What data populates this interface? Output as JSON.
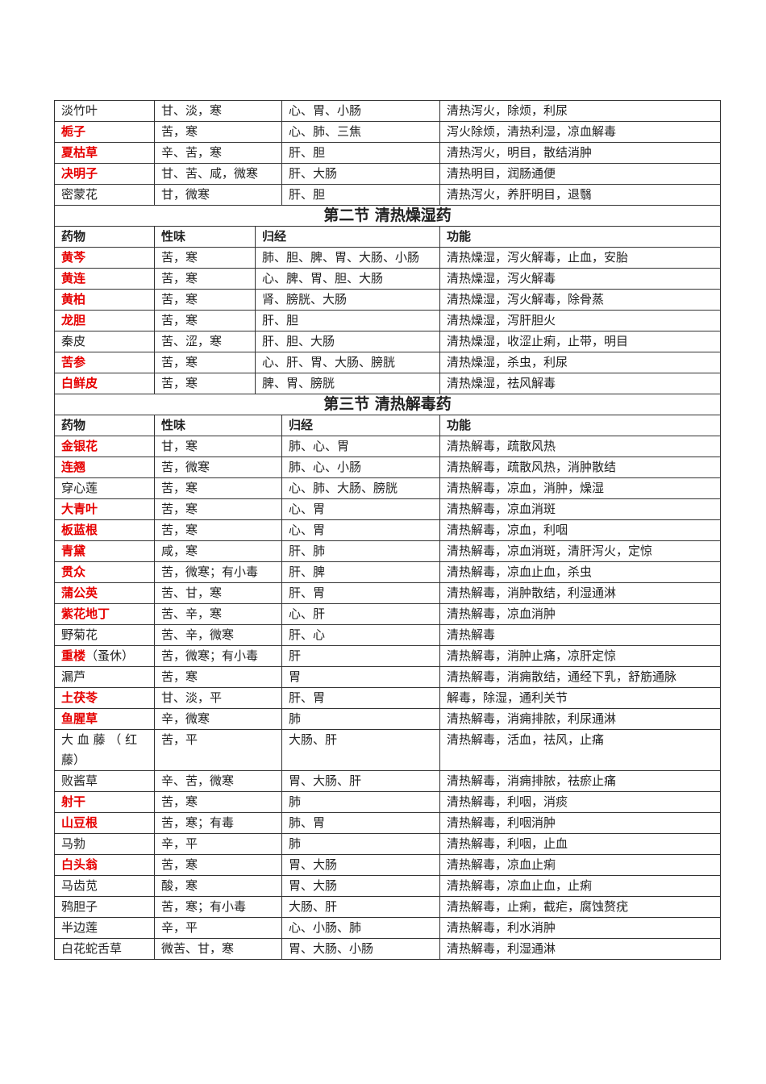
{
  "columns": [
    "药物",
    "性味",
    "归经",
    "功能"
  ],
  "key_color": "#e60000",
  "sections": [
    {
      "title": "",
      "show_header": false,
      "rows": [
        {
          "name": "淡竹叶",
          "key": false,
          "taste": "甘、淡，寒",
          "meridian": "心、胃、小肠",
          "function": "清热泻火，除烦，利尿"
        },
        {
          "name": "栀子",
          "key": true,
          "taste": "苦，寒",
          "meridian": "心、肺、三焦",
          "function": "泻火除烦，清热利湿，凉血解毒"
        },
        {
          "name": "夏枯草",
          "key": true,
          "taste": "辛、苦，寒",
          "meridian": "肝、胆",
          "function": "清热泻火，明目，散结消肿"
        },
        {
          "name": "决明子",
          "key": true,
          "taste": "甘、苦、咸，微寒",
          "meridian": "肝、大肠",
          "function": "清热明目，润肠通便"
        },
        {
          "name": "密蒙花",
          "key": false,
          "taste": "甘，微寒",
          "meridian": "肝、胆",
          "function": "清热泻火，养肝明目，退翳"
        }
      ]
    },
    {
      "title": "第二节 清热燥湿药",
      "show_header": true,
      "rows": [
        {
          "name": "黄芩",
          "key": true,
          "taste": "苦，寒",
          "meridian": "肺、胆、脾、胃、大肠、小肠",
          "function": "清热燥湿，泻火解毒，止血，安胎"
        },
        {
          "name": "黄连",
          "key": true,
          "taste": "苦，寒",
          "meridian": "心、脾、胃、胆、大肠",
          "function": "清热燥湿，泻火解毒"
        },
        {
          "name": "黄柏",
          "key": true,
          "taste": "苦，寒",
          "meridian": "肾、膀胱、大肠",
          "function": "清热燥湿，泻火解毒，除骨蒸"
        },
        {
          "name": "龙胆",
          "key": true,
          "taste": "苦，寒",
          "meridian": "肝、胆",
          "function": "清热燥湿，泻肝胆火"
        },
        {
          "name": "秦皮",
          "key": false,
          "taste": "苦、涩，寒",
          "meridian": "肝、胆、大肠",
          "function": "清热燥湿，收涩止痢，止带，明目"
        },
        {
          "name": "苦参",
          "key": true,
          "taste": "苦，寒",
          "meridian": "心、肝、胃、大肠、膀胱",
          "function": "清热燥湿，杀虫，利尿"
        },
        {
          "name": "白鲜皮",
          "key": true,
          "taste": "苦，寒",
          "meridian": "脾、胃、膀胱",
          "function": "清热燥湿，祛风解毒"
        }
      ]
    },
    {
      "title": "第三节 清热解毒药",
      "show_header": true,
      "rows": [
        {
          "name": "金银花",
          "key": true,
          "taste": "甘，寒",
          "meridian": "肺、心、胃",
          "function": "清热解毒，疏散风热"
        },
        {
          "name": "连翘",
          "key": true,
          "taste": "苦，微寒",
          "meridian": "肺、心、小肠",
          "function": "清热解毒，疏散风热，消肿散结"
        },
        {
          "name": "穿心莲",
          "key": false,
          "taste": "苦，寒",
          "meridian": "心、肺、大肠、膀胱",
          "function": "清热解毒，凉血，消肿，燥湿"
        },
        {
          "name": "大青叶",
          "key": true,
          "taste": "苦，寒",
          "meridian": "心、胃",
          "function": "清热解毒，凉血消斑"
        },
        {
          "name": "板蓝根",
          "key": true,
          "taste": "苦，寒",
          "meridian": "心、胃",
          "function": "清热解毒，凉血，利咽"
        },
        {
          "name": "青黛",
          "key": true,
          "taste": "咸，寒",
          "meridian": "肝、肺",
          "function": "清热解毒，凉血消斑，清肝泻火，定惊"
        },
        {
          "name": "贯众",
          "key": true,
          "taste": "苦，微寒；有小毒",
          "meridian": "肝、脾",
          "function": "清热解毒，凉血止血，杀虫"
        },
        {
          "name": "蒲公英",
          "key": true,
          "taste": "苦、甘，寒",
          "meridian": "肝、胃",
          "function": "清热解毒，消肿散结，利湿通淋"
        },
        {
          "name": "紫花地丁",
          "key": true,
          "taste": "苦、辛，寒",
          "meridian": "心、肝",
          "function": "清热解毒，凉血消肿"
        },
        {
          "name": "野菊花",
          "key": false,
          "taste": "苦、辛，微寒",
          "meridian": "肝、心",
          "function": "清热解毒"
        },
        {
          "name": "重楼",
          "suffix": "（蚤休）",
          "key": true,
          "taste": "苦，微寒；有小毒",
          "meridian": "肝",
          "function": "清热解毒，消肿止痛，凉肝定惊"
        },
        {
          "name": "漏芦",
          "key": false,
          "taste": "苦，寒",
          "meridian": "胃",
          "function": "清热解毒，消痈散结，通经下乳，舒筋通脉"
        },
        {
          "name": "土茯苓",
          "key": true,
          "taste": "甘、淡，平",
          "meridian": "肝、胃",
          "function": "解毒，除湿，通利关节"
        },
        {
          "name": "鱼腥草",
          "key": true,
          "taste": "辛，微寒",
          "meridian": "肺",
          "function": "清热解毒，消痈排脓，利尿通淋"
        },
        {
          "name": "大 血 藤 （ 红 藤）",
          "key": false,
          "taste": "苦，平",
          "meridian": "大肠、肝",
          "function": "清热解毒，活血，祛风，止痛"
        },
        {
          "name": "败酱草",
          "key": false,
          "taste": "辛、苦，微寒",
          "meridian": "胃、大肠、肝",
          "function": "清热解毒，消痈排脓，祛瘀止痛"
        },
        {
          "name": "射干",
          "key": true,
          "taste": "苦，寒",
          "meridian": "肺",
          "function": "清热解毒，利咽，消痰"
        },
        {
          "name": "山豆根",
          "key": true,
          "taste": "苦，寒；有毒",
          "meridian": "肺、胃",
          "function": "清热解毒，利咽消肿"
        },
        {
          "name": "马勃",
          "key": false,
          "taste": "辛，平",
          "meridian": "肺",
          "function": "清热解毒，利咽，止血"
        },
        {
          "name": "白头翁",
          "key": true,
          "taste": "苦，寒",
          "meridian": "胃、大肠",
          "function": "清热解毒，凉血止痢"
        },
        {
          "name": "马齿苋",
          "key": false,
          "taste": "酸，寒",
          "meridian": "胃、大肠",
          "function": "清热解毒，凉血止血，止痢"
        },
        {
          "name": "鸦胆子",
          "key": false,
          "taste": "苦，寒；有小毒",
          "meridian": "大肠、肝",
          "function": "清热解毒，止痢，截疟，腐蚀赘疣"
        },
        {
          "name": "半边莲",
          "key": false,
          "taste": "辛，平",
          "meridian": "心、小肠、肺",
          "function": "清热解毒，利水消肿"
        },
        {
          "name": "白花蛇舌草",
          "key": false,
          "taste": "微苦、甘，寒",
          "meridian": "胃、大肠、小肠",
          "function": "清热解毒，利湿通淋"
        }
      ]
    }
  ]
}
